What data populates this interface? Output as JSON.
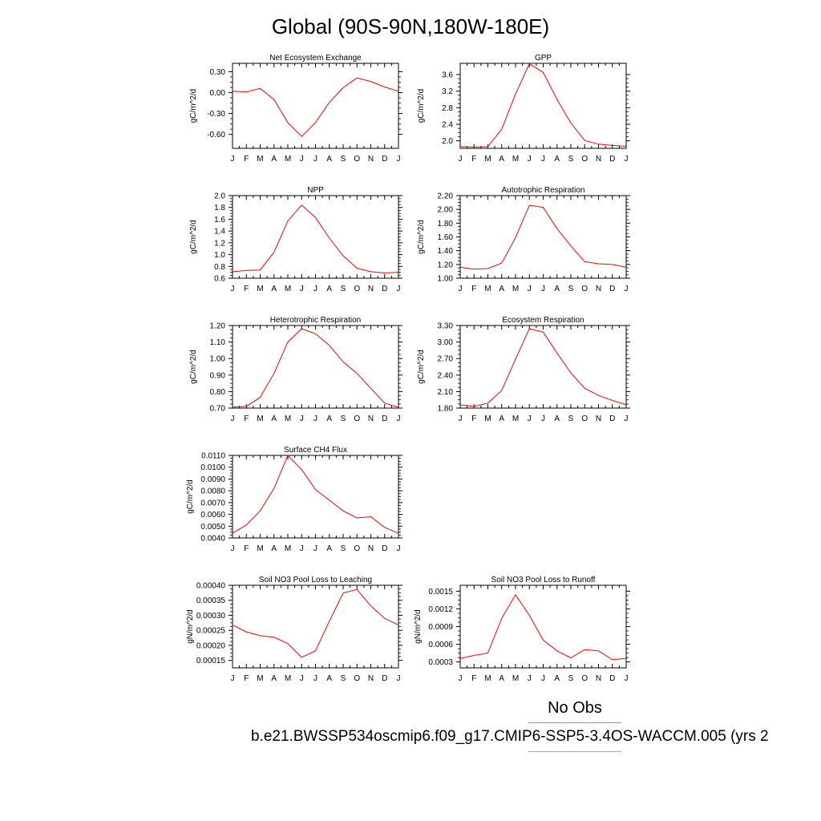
{
  "title": "Global (90S-90N,180W-180E)",
  "legend": {
    "obs_label": "No Obs",
    "model_label": "b.e21.BWSSP534oscmip6.f09_g17.CMIP6-SSP5-3.4OS-WACCM.005 (yrs 2",
    "obs_color": "#8888ee",
    "model_color": "#ee8888"
  },
  "line_color": "#ff0000",
  "months": [
    "J",
    "F",
    "M",
    "A",
    "M",
    "J",
    "J",
    "A",
    "S",
    "O",
    "N",
    "D",
    "J"
  ],
  "chart_data": [
    {
      "id": "nee",
      "type": "line",
      "title": "Net Ecosystem Exchange",
      "ylabel": "gC/m^2/d",
      "ylim": [
        -0.8,
        0.42
      ],
      "yticks": [
        {
          "v": 0.3,
          "l": "0.30"
        },
        {
          "v": 0.0,
          "l": "0.00"
        },
        {
          "v": -0.3,
          "l": "-0.30"
        },
        {
          "v": -0.6,
          "l": "-0.60"
        }
      ],
      "values": [
        0.02,
        0.01,
        0.06,
        -0.1,
        -0.43,
        -0.63,
        -0.43,
        -0.14,
        0.07,
        0.21,
        0.16,
        0.08,
        0.02
      ]
    },
    {
      "id": "gpp",
      "type": "line",
      "title": "GPP",
      "ylabel": "gC/m^2/d",
      "ylim": [
        1.82,
        3.87
      ],
      "yticks": [
        {
          "v": 3.6,
          "l": "3.6"
        },
        {
          "v": 3.2,
          "l": "3.2"
        },
        {
          "v": 2.8,
          "l": "2.8"
        },
        {
          "v": 2.4,
          "l": "2.4"
        },
        {
          "v": 2.0,
          "l": "2.0"
        }
      ],
      "values": [
        1.86,
        1.85,
        1.86,
        2.28,
        3.13,
        3.86,
        3.65,
        3.0,
        2.43,
        2.01,
        1.92,
        1.89,
        1.87
      ]
    },
    {
      "id": "npp",
      "type": "line",
      "title": "NPP",
      "ylabel": "gC/m^2/d",
      "ylim": [
        0.6,
        2.0
      ],
      "yticks": [
        {
          "v": 2.0,
          "l": "2.0"
        },
        {
          "v": 1.8,
          "l": "1.8"
        },
        {
          "v": 1.6,
          "l": "1.6"
        },
        {
          "v": 1.4,
          "l": "1.4"
        },
        {
          "v": 1.2,
          "l": "1.2"
        },
        {
          "v": 1.0,
          "l": "1.0"
        },
        {
          "v": 0.8,
          "l": "0.8"
        },
        {
          "v": 0.6,
          "l": "0.6"
        }
      ],
      "values": [
        0.71,
        0.73,
        0.74,
        1.04,
        1.57,
        1.84,
        1.63,
        1.28,
        0.98,
        0.77,
        0.71,
        0.69,
        0.7
      ]
    },
    {
      "id": "ar",
      "type": "line",
      "title": "Autotrophic Respiration",
      "ylabel": "gC/m^2/d",
      "ylim": [
        1.0,
        2.2
      ],
      "yticks": [
        {
          "v": 2.2,
          "l": "2.20"
        },
        {
          "v": 2.0,
          "l": "2.00"
        },
        {
          "v": 1.8,
          "l": "1.80"
        },
        {
          "v": 1.6,
          "l": "1.60"
        },
        {
          "v": 1.4,
          "l": "1.40"
        },
        {
          "v": 1.2,
          "l": "1.20"
        },
        {
          "v": 1.0,
          "l": "1.00"
        }
      ],
      "values": [
        1.16,
        1.13,
        1.14,
        1.22,
        1.59,
        2.06,
        2.03,
        1.72,
        1.47,
        1.24,
        1.21,
        1.2,
        1.16
      ]
    },
    {
      "id": "hr",
      "type": "line",
      "title": "Heterotrophic Respiration",
      "ylabel": "gC/m^2/d",
      "ylim": [
        0.7,
        1.2
      ],
      "yticks": [
        {
          "v": 1.2,
          "l": "1.20"
        },
        {
          "v": 1.1,
          "l": "1.10"
        },
        {
          "v": 1.0,
          "l": "1.00"
        },
        {
          "v": 0.9,
          "l": "0.90"
        },
        {
          "v": 0.8,
          "l": "0.80"
        },
        {
          "v": 0.7,
          "l": "0.70"
        }
      ],
      "values": [
        0.706,
        0.71,
        0.765,
        0.91,
        1.1,
        1.18,
        1.15,
        1.08,
        0.98,
        0.91,
        0.82,
        0.73,
        0.705
      ]
    },
    {
      "id": "er",
      "type": "line",
      "title": "Ecosystem Respiration",
      "ylabel": "gC/m^2/d",
      "ylim": [
        1.8,
        3.3
      ],
      "yticks": [
        {
          "v": 3.3,
          "l": "3.30"
        },
        {
          "v": 3.0,
          "l": "3.00"
        },
        {
          "v": 2.7,
          "l": "2.70"
        },
        {
          "v": 2.4,
          "l": "2.40"
        },
        {
          "v": 2.1,
          "l": "2.10"
        },
        {
          "v": 1.8,
          "l": "1.80"
        }
      ],
      "values": [
        1.86,
        1.83,
        1.89,
        2.12,
        2.69,
        3.24,
        3.18,
        2.8,
        2.44,
        2.16,
        2.03,
        1.94,
        1.86
      ]
    },
    {
      "id": "ch4",
      "type": "line",
      "title": "Surface CH4 Flux",
      "ylabel": "gC/m^2/d",
      "ylim": [
        0.004,
        0.011
      ],
      "yticks": [
        {
          "v": 0.011,
          "l": "0.0110"
        },
        {
          "v": 0.01,
          "l": "0.0100"
        },
        {
          "v": 0.009,
          "l": "0.0090"
        },
        {
          "v": 0.008,
          "l": "0.0080"
        },
        {
          "v": 0.007,
          "l": "0.0070"
        },
        {
          "v": 0.006,
          "l": "0.0060"
        },
        {
          "v": 0.005,
          "l": "0.0050"
        },
        {
          "v": 0.004,
          "l": "0.0040"
        }
      ],
      "values": [
        0.0044,
        0.0051,
        0.0063,
        0.0082,
        0.011,
        0.0098,
        0.0081,
        0.0072,
        0.0063,
        0.0057,
        0.0058,
        0.0049,
        0.0044
      ]
    },
    {
      "id": "leach",
      "type": "line",
      "title": "Soil NO3 Pool Loss to Leaching",
      "ylabel": "gN/m^2/d",
      "ylim": [
        0.000125,
        0.0004
      ],
      "yticks": [
        {
          "v": 0.0004,
          "l": "0.00040"
        },
        {
          "v": 0.00035,
          "l": "0.00035"
        },
        {
          "v": 0.0003,
          "l": "0.00030"
        },
        {
          "v": 0.00025,
          "l": "0.00025"
        },
        {
          "v": 0.0002,
          "l": "0.00020"
        },
        {
          "v": 0.00015,
          "l": "0.00015"
        }
      ],
      "values": [
        0.000268,
        0.000245,
        0.000232,
        0.000227,
        0.000206,
        0.00016,
        0.000182,
        0.00028,
        0.000374,
        0.000386,
        0.000331,
        0.00029,
        0.000268
      ]
    },
    {
      "id": "runoff",
      "type": "line",
      "title": "Soil NO3 Pool Loss to Runoff",
      "ylabel": "gN/m^2/d",
      "ylim": [
        0.0002,
        0.0016
      ],
      "yticks": [
        {
          "v": 0.0015,
          "l": "0.0015"
        },
        {
          "v": 0.0012,
          "l": "0.0012"
        },
        {
          "v": 0.0009,
          "l": "0.0009"
        },
        {
          "v": 0.0006,
          "l": "0.0006"
        },
        {
          "v": 0.0003,
          "l": "0.0003"
        }
      ],
      "values": [
        0.00036,
        0.00041,
        0.00045,
        0.00104,
        0.00144,
        0.00109,
        0.00067,
        0.00049,
        0.00037,
        0.00051,
        0.00049,
        0.00034,
        0.00036
      ]
    }
  ]
}
